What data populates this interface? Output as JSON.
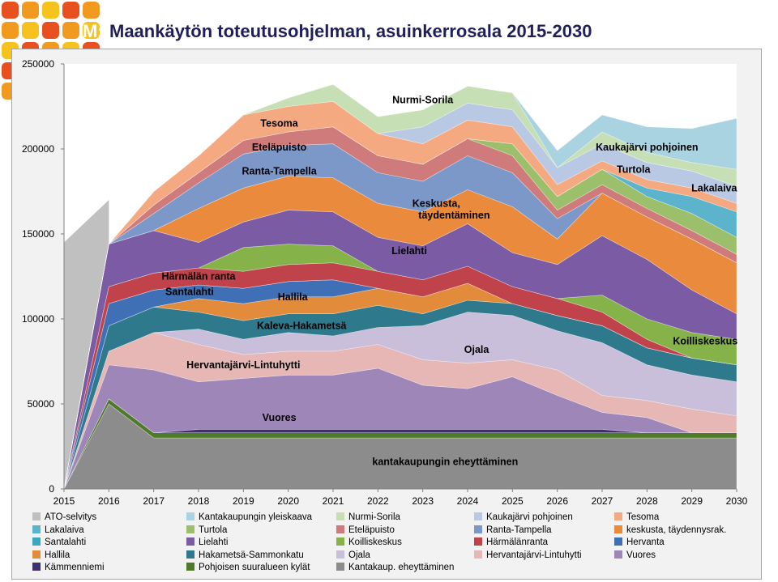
{
  "header": {
    "title_prefix": "M:",
    "title": "Maankäytön toteutusohjelman, asuinkerrosala 2015-2030"
  },
  "logo": {
    "colors": [
      "#e8501f",
      "#f29a1f",
      "#f6c21d"
    ]
  },
  "chart_data": {
    "type": "area",
    "stacked": true,
    "title": "",
    "xlabel": "",
    "ylabel": "",
    "x": [
      2015,
      2016,
      2017,
      2018,
      2019,
      2020,
      2021,
      2022,
      2023,
      2024,
      2025,
      2026,
      2027,
      2028,
      2029,
      2030
    ],
    "x_tick_labels": [
      "2015",
      "2016",
      "2017",
      "2018",
      "2019",
      "2020",
      "2021",
      "2022",
      "2023",
      "2024",
      "2025",
      "2026",
      "2027",
      "2028",
      "2029",
      "2030"
    ],
    "ylim": [
      0,
      250000
    ],
    "y_ticks": [
      0,
      50000,
      100000,
      150000,
      200000,
      250000
    ],
    "y_tick_labels": [
      "0",
      "50000",
      "100000",
      "150000",
      "200000",
      "250000"
    ],
    "grid": false,
    "legend_position": "bottom",
    "series": [
      {
        "name": "Kantakaup. eheyttäminen",
        "color": "#8c8c8c",
        "values": [
          0,
          50000,
          30000,
          30000,
          30000,
          30000,
          30000,
          30000,
          30000,
          30000,
          30000,
          30000,
          30000,
          30000,
          30000,
          30000
        ]
      },
      {
        "name": "Pohjoisen suuralueen kylät",
        "color": "#4e7a2a",
        "values": [
          0,
          3000,
          3000,
          3000,
          3000,
          3000,
          3000,
          3000,
          3000,
          3000,
          3000,
          3000,
          3000,
          3000,
          3000,
          3000
        ]
      },
      {
        "name": "Kämmenniemi",
        "color": "#3f2f6e",
        "values": [
          0,
          0,
          0,
          2000,
          2000,
          2000,
          2000,
          2000,
          2000,
          2000,
          2000,
          2000,
          2000,
          0,
          0,
          0
        ]
      },
      {
        "name": "Vuores",
        "color": "#9e86b8",
        "values": [
          0,
          20000,
          37000,
          28000,
          30000,
          32000,
          32000,
          36000,
          26000,
          24000,
          31000,
          20000,
          10000,
          9000,
          0,
          0
        ]
      },
      {
        "name": "Hervantajärvi-Lintuhytti",
        "color": "#e6b7b5",
        "values": [
          0,
          8000,
          22000,
          22000,
          14000,
          14000,
          14000,
          14000,
          15000,
          15000,
          10000,
          15000,
          10000,
          10000,
          14000,
          10000
        ]
      },
      {
        "name": "Ojala",
        "color": "#c9bfdb",
        "values": [
          0,
          0,
          0,
          9000,
          9000,
          11000,
          9000,
          10000,
          20000,
          30000,
          26000,
          23000,
          31000,
          21000,
          20000,
          20000
        ]
      },
      {
        "name": "Hakametsä-Sammonkatu",
        "color": "#2e7a8c",
        "values": [
          0,
          15000,
          15000,
          10000,
          11000,
          11000,
          13000,
          13000,
          7000,
          7000,
          7000,
          9000,
          10000,
          10000,
          10000,
          10000
        ]
      },
      {
        "name": "Hallila",
        "color": "#e28b3a",
        "values": [
          0,
          0,
          0,
          8000,
          10000,
          10000,
          10000,
          10000,
          10000,
          10000,
          0,
          0,
          0,
          0,
          0,
          0
        ]
      },
      {
        "name": "Hervanta",
        "color": "#3f6fb5",
        "values": [
          0,
          13000,
          10000,
          8000,
          9000,
          9000,
          10000,
          0,
          0,
          0,
          0,
          0,
          0,
          0,
          0,
          0
        ]
      },
      {
        "name": "Santalahti",
        "color": "#3aa6c2",
        "values": [
          0,
          0,
          0,
          0,
          0,
          0,
          0,
          0,
          0,
          0,
          0,
          0,
          0,
          0,
          0,
          0
        ]
      },
      {
        "name": "Härmälänranta",
        "color": "#c0424a",
        "values": [
          0,
          10000,
          10000,
          10000,
          10000,
          10000,
          10000,
          10000,
          10000,
          10000,
          10000,
          10000,
          8000,
          5000,
          0,
          0
        ]
      },
      {
        "name": "Koilliskeskus",
        "color": "#86b24a",
        "values": [
          0,
          0,
          0,
          0,
          14000,
          12000,
          10000,
          0,
          0,
          0,
          0,
          0,
          10000,
          12000,
          15000,
          15000
        ]
      },
      {
        "name": "Lielahti",
        "color": "#7a5ba4",
        "values": [
          0,
          25000,
          25000,
          15000,
          15000,
          20000,
          20000,
          20000,
          20000,
          25000,
          20000,
          20000,
          35000,
          35000,
          25000,
          15000
        ]
      },
      {
        "name": "keskusta, täydennysrak.",
        "color": "#ea8a3c",
        "values": [
          0,
          0,
          0,
          20000,
          20000,
          20000,
          20000,
          20000,
          20000,
          20000,
          27000,
          15000,
          25000,
          25000,
          30000,
          30000
        ]
      },
      {
        "name": "Ranta-Tampella",
        "color": "#7b98c9",
        "values": [
          0,
          0,
          10000,
          15000,
          20000,
          18000,
          20000,
          18000,
          18000,
          20000,
          20000,
          12000,
          0,
          0,
          0,
          0
        ]
      },
      {
        "name": "Eteläpuisto",
        "color": "#d07b7b",
        "values": [
          0,
          0,
          5000,
          6000,
          8000,
          8000,
          10000,
          10000,
          10000,
          10000,
          10000,
          5000,
          5000,
          5000,
          5000,
          5000
        ]
      },
      {
        "name": "Turtola",
        "color": "#9bbf6a",
        "values": [
          0,
          0,
          0,
          0,
          0,
          0,
          0,
          0,
          0,
          0,
          7000,
          8000,
          9000,
          7000,
          10000,
          10000
        ]
      },
      {
        "name": "Lakalaiva",
        "color": "#5bb3cc",
        "values": [
          0,
          0,
          0,
          0,
          0,
          0,
          0,
          0,
          0,
          0,
          0,
          0,
          0,
          5000,
          10000,
          15000
        ]
      },
      {
        "name": "Tesoma",
        "color": "#f4a981",
        "values": [
          0,
          0,
          8000,
          10000,
          15000,
          15000,
          15000,
          13000,
          12000,
          11000,
          10000,
          7000,
          5000,
          5000,
          5000,
          5000
        ]
      },
      {
        "name": "Kaukajärvi pohjoinen",
        "color": "#b9c9e4",
        "values": [
          0,
          0,
          0,
          0,
          0,
          0,
          0,
          0,
          10000,
          10000,
          10000,
          10000,
          10000,
          10000,
          10000,
          10000
        ]
      },
      {
        "name": "Nurmi-Sorila",
        "color": "#c6dfb4",
        "values": [
          0,
          0,
          0,
          0,
          0,
          5000,
          10000,
          10000,
          10000,
          10000,
          10000,
          0,
          7000,
          6000,
          5000,
          10000
        ]
      },
      {
        "name": "Kantakaupungin yleiskaava",
        "color": "#a9d3e1",
        "values": [
          0,
          0,
          0,
          0,
          0,
          0,
          0,
          0,
          0,
          0,
          0,
          10000,
          10000,
          15000,
          20000,
          30000
        ]
      }
    ],
    "ato": {
      "name": "ATO-selvitys",
      "color": "#c0c0c0",
      "values": [
        145000,
        170000
      ]
    },
    "annotations": [
      {
        "text": "Nurmi-Sorila",
        "x": 2023,
        "y": 227000
      },
      {
        "text": "Tesoma",
        "x": 2019.8,
        "y": 213000
      },
      {
        "text": "Eteläpuisto",
        "x": 2019.8,
        "y": 199000
      },
      {
        "text": "Ranta-Tampella",
        "x": 2019.8,
        "y": 185000
      },
      {
        "text": "Kaukajärvi pohjoinen",
        "x": 2028,
        "y": 199000
      },
      {
        "text": "Turtola",
        "x": 2027.7,
        "y": 186000
      },
      {
        "text": "Lakalaiva",
        "x": 2029.5,
        "y": 175000
      },
      {
        "text": "Keskusta,",
        "x": 2023.3,
        "y": 166000
      },
      {
        "text": "täydentäminen",
        "x": 2023.7,
        "y": 159000
      },
      {
        "text": "Lielahti",
        "x": 2022.7,
        "y": 138000
      },
      {
        "text": "Härmälän ranta",
        "x": 2018.0,
        "y": 123000
      },
      {
        "text": "Santalahti",
        "x": 2017.8,
        "y": 114000
      },
      {
        "text": "Hallila",
        "x": 2020.1,
        "y": 111000
      },
      {
        "text": "Kaleva-Hakametsä",
        "x": 2020.3,
        "y": 94000
      },
      {
        "text": "Koilliskeskus",
        "x": 2029.3,
        "y": 85000
      },
      {
        "text": "Ojala",
        "x": 2024.2,
        "y": 80000
      },
      {
        "text": "Hervantajärvi-Lintuhytti",
        "x": 2019.0,
        "y": 71000
      },
      {
        "text": "Vuores",
        "x": 2019.8,
        "y": 40000
      },
      {
        "text": "kantakaupungin eheyttäminen",
        "x": 2023.5,
        "y": 14000
      }
    ]
  },
  "legend": [
    {
      "label": "ATO-selvitys",
      "color": "#c0c0c0"
    },
    {
      "label": "Kantakaupungin yleiskaava",
      "color": "#a9d3e1"
    },
    {
      "label": "Nurmi-Sorila",
      "color": "#c6dfb4"
    },
    {
      "label": "Kaukajärvi pohjoinen",
      "color": "#b9c9e4"
    },
    {
      "label": "Tesoma",
      "color": "#f4a981"
    },
    {
      "label": "Lakalaiva",
      "color": "#5bb3cc"
    },
    {
      "label": "Turtola",
      "color": "#9bbf6a"
    },
    {
      "label": "Eteläpuisto",
      "color": "#d07b7b"
    },
    {
      "label": "Ranta-Tampella",
      "color": "#7b98c9"
    },
    {
      "label": "keskusta, täydennysrak.",
      "color": "#ea8a3c"
    },
    {
      "label": "Santalahti",
      "color": "#3aa6c2"
    },
    {
      "label": "Lielahti",
      "color": "#7a5ba4"
    },
    {
      "label": "Koilliskeskus",
      "color": "#86b24a"
    },
    {
      "label": "Härmälänranta",
      "color": "#c0424a"
    },
    {
      "label": "Hervanta",
      "color": "#3f6fb5"
    },
    {
      "label": "Hallila",
      "color": "#e28b3a"
    },
    {
      "label": "Hakametsä-Sammonkatu",
      "color": "#2e7a8c"
    },
    {
      "label": "Ojala",
      "color": "#c9bfdb"
    },
    {
      "label": "Hervantajärvi-Lintuhytti",
      "color": "#e6b7b5"
    },
    {
      "label": "Vuores",
      "color": "#9e86b8"
    },
    {
      "label": "Kämmenniemi",
      "color": "#3f2f6e"
    },
    {
      "label": "Pohjoisen suuralueen kylät",
      "color": "#4e7a2a"
    },
    {
      "label": "Kantakaup. eheyttäminen",
      "color": "#8c8c8c"
    }
  ]
}
